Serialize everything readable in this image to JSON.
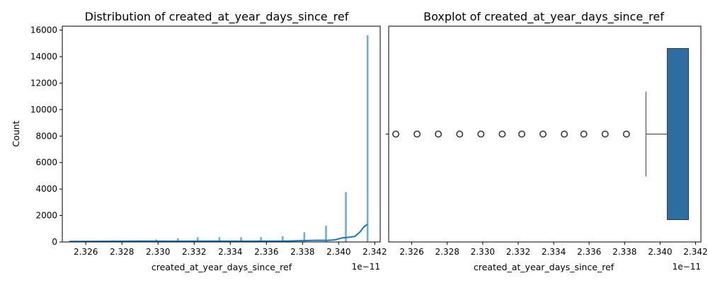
{
  "chart_data": [
    {
      "type": "histogram",
      "title": "Distribution of created_at_year_days_since_ref",
      "xlabel": "created_at_year_days_since_ref",
      "ylabel": "Count",
      "x_offset_label": "1e−11",
      "xlim": [
        2.3247,
        2.3423
      ],
      "ylim": [
        0,
        16300
      ],
      "xticks": [
        2.326,
        2.328,
        2.33,
        2.332,
        2.334,
        2.336,
        2.338,
        2.34,
        2.342
      ],
      "xtick_labels": [
        "2.326",
        "2.328",
        "2.330",
        "2.332",
        "2.334",
        "2.336",
        "2.338",
        "2.340",
        "2.342"
      ],
      "yticks": [
        0,
        2000,
        4000,
        6000,
        8000,
        10000,
        12000,
        14000,
        16000
      ],
      "ytick_labels": [
        "0",
        "2000",
        "4000",
        "6000",
        "8000",
        "10000",
        "12000",
        "14000",
        "16000"
      ],
      "bar_color": "#1f77b4",
      "kde": true,
      "grid": false,
      "bins": [
        {
          "x": 2.3251,
          "count": 30
        },
        {
          "x": 2.3263,
          "count": 50
        },
        {
          "x": 2.3275,
          "count": 110
        },
        {
          "x": 2.3287,
          "count": 90
        },
        {
          "x": 2.3299,
          "count": 170
        },
        {
          "x": 2.3311,
          "count": 250
        },
        {
          "x": 2.3322,
          "count": 340
        },
        {
          "x": 2.3334,
          "count": 340
        },
        {
          "x": 2.3346,
          "count": 340
        },
        {
          "x": 2.3357,
          "count": 350
        },
        {
          "x": 2.3369,
          "count": 410
        },
        {
          "x": 2.3381,
          "count": 710
        },
        {
          "x": 2.3393,
          "count": 1200
        },
        {
          "x": 2.3404,
          "count": 3750
        },
        {
          "x": 2.3416,
          "count": 15600
        }
      ],
      "kde_points": [
        {
          "x": 2.3251,
          "y": 40
        },
        {
          "x": 2.327,
          "y": 55
        },
        {
          "x": 2.329,
          "y": 70
        },
        {
          "x": 2.331,
          "y": 60
        },
        {
          "x": 2.333,
          "y": 70
        },
        {
          "x": 2.335,
          "y": 60
        },
        {
          "x": 2.337,
          "y": 70
        },
        {
          "x": 2.338,
          "y": 100
        },
        {
          "x": 2.3388,
          "y": 130
        },
        {
          "x": 2.3394,
          "y": 120
        },
        {
          "x": 2.3398,
          "y": 160
        },
        {
          "x": 2.3402,
          "y": 310
        },
        {
          "x": 2.3406,
          "y": 360
        },
        {
          "x": 2.3409,
          "y": 420
        },
        {
          "x": 2.3412,
          "y": 780
        },
        {
          "x": 2.3414,
          "y": 1150
        },
        {
          "x": 2.3416,
          "y": 1330
        }
      ]
    },
    {
      "type": "boxplot",
      "title": "Boxplot of created_at_year_days_since_ref",
      "xlabel": "created_at_year_days_since_ref",
      "x_offset_label": "1e−11",
      "xlim": [
        2.3247,
        2.3423
      ],
      "xticks": [
        2.326,
        2.328,
        2.33,
        2.332,
        2.334,
        2.336,
        2.338,
        2.34,
        2.342
      ],
      "xtick_labels": [
        "2.326",
        "2.328",
        "2.330",
        "2.332",
        "2.334",
        "2.336",
        "2.338",
        "2.340",
        "2.342"
      ],
      "box_color": "#2e6fa3",
      "q1": 2.3404,
      "median": 2.3416,
      "q3": 2.3416,
      "whisker_low": 2.3392,
      "whisker_high": 2.3416,
      "outliers": [
        2.3251,
        2.3263,
        2.3275,
        2.3287,
        2.3299,
        2.3311,
        2.3322,
        2.3334,
        2.3346,
        2.3357,
        2.3369,
        2.3381
      ]
    }
  ]
}
